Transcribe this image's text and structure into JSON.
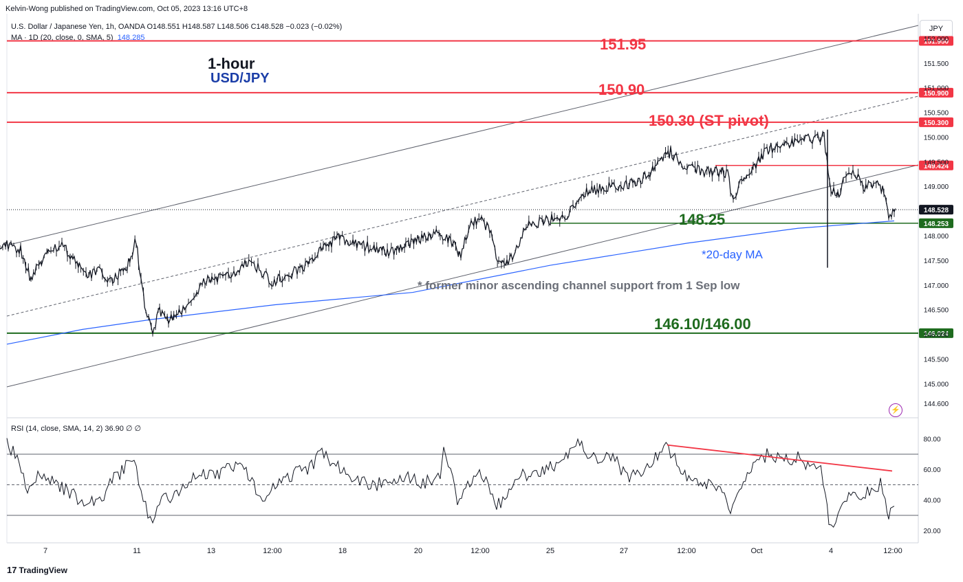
{
  "header": {
    "publisher": "Kelvin-Wong published on TradingView.com, Oct 05, 2023 13:16 UTC+8",
    "legend_main": "U.S. Dollar / Japanese Yen, 1h, OANDA  O148.551  H148.587  L148.506  C148.528  −0.023 (−0.02%)",
    "legend_ma_prefix": "MA · 1D (20, close, 0, SMA, 5)",
    "legend_ma_value": "148.285",
    "legend_rsi": "RSI (14, close, SMA, 14, 2)  36.90  ∅  ∅",
    "currency_button": "JPY"
  },
  "footer": {
    "brand": "TradingView",
    "logo_glyph": "17"
  },
  "annotations": {
    "title_timeframe": "1-hour",
    "title_symbol": "USD/JPY",
    "r3": "151.95",
    "r2": "150.90",
    "r1": "150.30 (ST pivot)",
    "s1": "148.25",
    "ma_note": "*20-day MA",
    "channel_note": "* former minor ascending channel support from 1 Sep low",
    "s2": "146.10/146.00"
  },
  "colors": {
    "red": "#f23645",
    "green": "#1e6b1e",
    "blue": "#2962ff",
    "candle": "#131722",
    "gray": "#787b86",
    "rsi_line": "#131722"
  },
  "chart_data": [
    {
      "type": "candlestick",
      "title": "U.S. Dollar / Japanese Yen, 1h, OANDA",
      "ylim": [
        144.35,
        152.5
      ],
      "y_ticks": [
        "152.000",
        "151.500",
        "151.000",
        "150.500",
        "150.000",
        "149.500",
        "149.000",
        "148.000",
        "147.500",
        "147.000",
        "146.500",
        "146.000",
        "145.500",
        "145.000",
        "144.600"
      ],
      "x_ticks": [
        "7",
        "11",
        "13",
        "12:00",
        "18",
        "20",
        "12:00",
        "25",
        "27",
        "12:00",
        "Oct",
        "4",
        "12:00"
      ],
      "price_path": [
        [
          0,
          147.85
        ],
        [
          30,
          147.7
        ],
        [
          45,
          147.1
        ],
        [
          70,
          147.75
        ],
        [
          90,
          147.8
        ],
        [
          110,
          147.5
        ],
        [
          125,
          147.2
        ],
        [
          145,
          147.3
        ],
        [
          160,
          147.05
        ],
        [
          185,
          147.4
        ],
        [
          198,
          147.9
        ],
        [
          205,
          147.1
        ],
        [
          212,
          146.4
        ],
        [
          222,
          146.05
        ],
        [
          232,
          146.5
        ],
        [
          245,
          146.25
        ],
        [
          270,
          146.55
        ],
        [
          300,
          147.1
        ],
        [
          320,
          147.15
        ],
        [
          340,
          147.2
        ],
        [
          358,
          147.45
        ],
        [
          375,
          147.35
        ],
        [
          395,
          147.05
        ],
        [
          420,
          147.2
        ],
        [
          450,
          147.45
        ],
        [
          470,
          147.75
        ],
        [
          490,
          147.95
        ],
        [
          515,
          147.85
        ],
        [
          540,
          147.75
        ],
        [
          565,
          147.65
        ],
        [
          590,
          147.8
        ],
        [
          615,
          147.95
        ],
        [
          640,
          148.05
        ],
        [
          655,
          147.9
        ],
        [
          670,
          147.6
        ],
        [
          685,
          148.3
        ],
        [
          700,
          148.3
        ],
        [
          712,
          148.1
        ],
        [
          725,
          147.45
        ],
        [
          745,
          147.55
        ],
        [
          765,
          148.2
        ],
        [
          790,
          148.3
        ],
        [
          810,
          148.35
        ],
        [
          825,
          148.45
        ],
        [
          845,
          148.85
        ],
        [
          870,
          148.95
        ],
        [
          895,
          149.0
        ],
        [
          920,
          149.05
        ],
        [
          945,
          149.25
        ],
        [
          960,
          149.5
        ],
        [
          975,
          149.7
        ],
        [
          995,
          149.4
        ],
        [
          1020,
          149.3
        ],
        [
          1045,
          149.3
        ],
        [
          1058,
          149.25
        ],
        [
          1066,
          148.65
        ],
        [
          1078,
          149.1
        ],
        [
          1095,
          149.35
        ],
        [
          1115,
          149.75
        ],
        [
          1140,
          149.85
        ],
        [
          1165,
          149.95
        ],
        [
          1185,
          149.95
        ],
        [
          1198,
          150.0
        ],
        [
          1202,
          149.5
        ],
        [
          1208,
          148.95
        ],
        [
          1218,
          148.8
        ],
        [
          1230,
          149.25
        ],
        [
          1240,
          149.35
        ],
        [
          1255,
          148.95
        ],
        [
          1270,
          149.05
        ],
        [
          1285,
          148.95
        ],
        [
          1292,
          148.35
        ],
        [
          1302,
          148.55
        ]
      ],
      "ma_20day": [
        [
          10,
          145.8
        ],
        [
          120,
          146.1
        ],
        [
          220,
          146.3
        ],
        [
          400,
          146.6
        ],
        [
          600,
          146.85
        ],
        [
          800,
          147.4
        ],
        [
          1000,
          147.85
        ],
        [
          1160,
          148.15
        ],
        [
          1300,
          148.3
        ]
      ],
      "levels": [
        {
          "label": "151.950",
          "value": 151.95,
          "color": "#f23645"
        },
        {
          "label": "150.900",
          "value": 150.9,
          "color": "#f23645"
        },
        {
          "label": "150.300",
          "value": 150.3,
          "color": "#f23645"
        },
        {
          "label": "149.424",
          "value": 149.424,
          "color": "#f23645"
        },
        {
          "label": "148.528",
          "value": 148.528,
          "color": "#131722"
        },
        {
          "label": "148.253",
          "value": 148.253,
          "color": "#1e6b1e"
        },
        {
          "label": "146.024",
          "value": 146.024,
          "color": "#1e6b1e"
        }
      ]
    },
    {
      "type": "line",
      "title": "RSI (14, close, SMA, 14, 2)",
      "ylim": [
        12,
        92
      ],
      "y_ticks": [
        "80.00",
        "60.00",
        "40.00",
        "20.00"
      ],
      "bands": [
        70,
        50,
        30
      ],
      "values": [
        [
          10,
          80
        ],
        [
          25,
          65
        ],
        [
          40,
          48
        ],
        [
          55,
          58
        ],
        [
          70,
          55
        ],
        [
          90,
          48
        ],
        [
          110,
          42
        ],
        [
          125,
          40
        ],
        [
          145,
          38
        ],
        [
          160,
          52
        ],
        [
          180,
          60
        ],
        [
          195,
          68
        ],
        [
          205,
          42
        ],
        [
          215,
          32
        ],
        [
          222,
          26
        ],
        [
          235,
          40
        ],
        [
          260,
          45
        ],
        [
          290,
          58
        ],
        [
          310,
          55
        ],
        [
          330,
          62
        ],
        [
          355,
          60
        ],
        [
          375,
          45
        ],
        [
          385,
          38
        ],
        [
          400,
          50
        ],
        [
          430,
          58
        ],
        [
          450,
          60
        ],
        [
          468,
          74
        ],
        [
          480,
          65
        ],
        [
          500,
          60
        ],
        [
          520,
          52
        ],
        [
          545,
          50
        ],
        [
          570,
          52
        ],
        [
          590,
          56
        ],
        [
          615,
          50
        ],
        [
          640,
          58
        ],
        [
          645,
          75
        ],
        [
          655,
          60
        ],
        [
          665,
          38
        ],
        [
          680,
          52
        ],
        [
          700,
          58
        ],
        [
          710,
          50
        ],
        [
          722,
          36
        ],
        [
          740,
          45
        ],
        [
          760,
          58
        ],
        [
          780,
          55
        ],
        [
          800,
          62
        ],
        [
          820,
          65
        ],
        [
          840,
          78
        ],
        [
          860,
          68
        ],
        [
          875,
          65
        ],
        [
          885,
          72
        ],
        [
          900,
          62
        ],
        [
          915,
          55
        ],
        [
          935,
          60
        ],
        [
          950,
          66
        ],
        [
          965,
          75
        ],
        [
          975,
          70
        ],
        [
          990,
          60
        ],
        [
          1010,
          52
        ],
        [
          1030,
          50
        ],
        [
          1050,
          48
        ],
        [
          1062,
          30
        ],
        [
          1075,
          50
        ],
        [
          1095,
          62
        ],
        [
          1115,
          70
        ],
        [
          1140,
          65
        ],
        [
          1160,
          68
        ],
        [
          1180,
          60
        ],
        [
          1190,
          65
        ],
        [
          1200,
          48
        ],
        [
          1205,
          25
        ],
        [
          1215,
          22
        ],
        [
          1225,
          40
        ],
        [
          1240,
          45
        ],
        [
          1255,
          42
        ],
        [
          1270,
          48
        ],
        [
          1280,
          50
        ],
        [
          1287,
          38
        ],
        [
          1292,
          28
        ],
        [
          1300,
          36
        ]
      ],
      "trendline": [
        [
          970,
          76
        ],
        [
          1297,
          59
        ]
      ]
    }
  ]
}
